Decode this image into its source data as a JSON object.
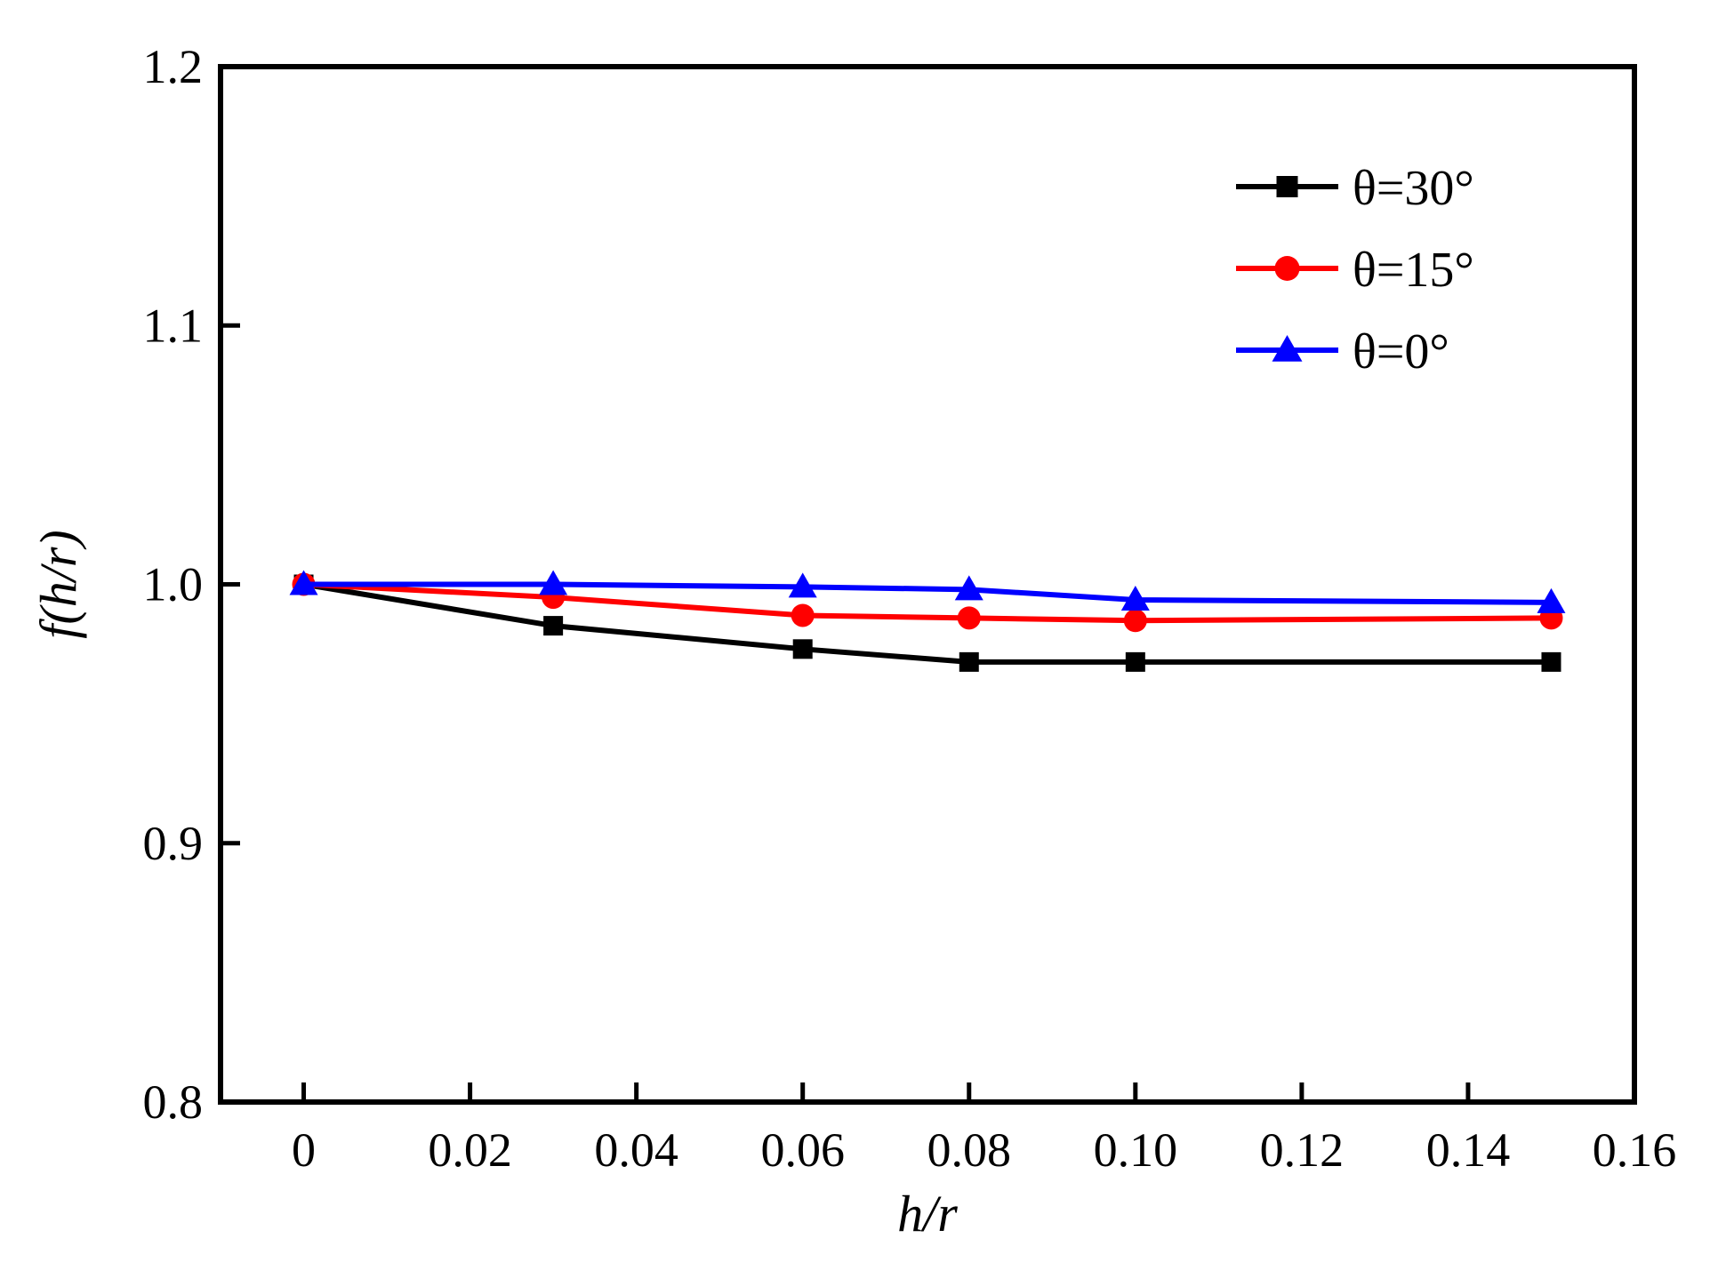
{
  "chart_data": {
    "type": "line",
    "xlabel": "h/r",
    "ylabel": "f(h/r)",
    "xlim": [
      -0.01,
      0.16
    ],
    "ylim": [
      0.8,
      1.2
    ],
    "x_ticks": [
      0,
      0.02,
      0.04,
      0.06,
      0.08,
      0.1,
      0.12,
      0.14,
      0.16
    ],
    "x_tick_labels": [
      "0",
      "0.02",
      "0.04",
      "0.06",
      "0.08",
      "0.10",
      "0.12",
      "0.14",
      "0.16"
    ],
    "y_ticks": [
      0.8,
      0.9,
      1.0,
      1.1,
      1.2
    ],
    "y_tick_labels": [
      "0.8",
      "0.9",
      "1.0",
      "1.1",
      "1.2"
    ],
    "grid": false,
    "legend_position": "top-right",
    "series": [
      {
        "name": "θ=30°",
        "color": "#000000",
        "marker": "square",
        "x": [
          0,
          0.03,
          0.06,
          0.08,
          0.1,
          0.15
        ],
        "y": [
          1.0,
          0.984,
          0.975,
          0.97,
          0.97,
          0.97
        ]
      },
      {
        "name": "θ=15°",
        "color": "#ff0000",
        "marker": "circle",
        "x": [
          0,
          0.03,
          0.06,
          0.08,
          0.1,
          0.15
        ],
        "y": [
          1.0,
          0.995,
          0.988,
          0.987,
          0.986,
          0.987
        ]
      },
      {
        "name": "θ=0°",
        "color": "#0000ff",
        "marker": "triangle",
        "x": [
          0,
          0.03,
          0.06,
          0.08,
          0.1,
          0.15
        ],
        "y": [
          1.0,
          1.0,
          0.999,
          0.998,
          0.994,
          0.993
        ]
      }
    ]
  }
}
